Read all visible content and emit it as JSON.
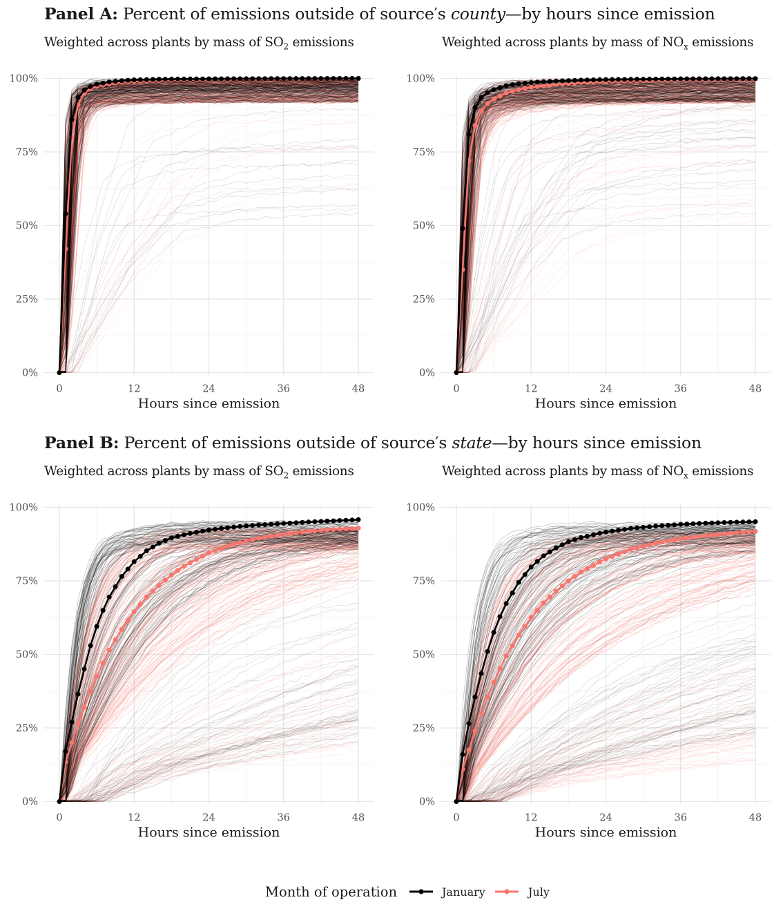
{
  "panels": {
    "a": {
      "bold": "Panel A:",
      "pre": " Percent of emissions outside of source′s ",
      "em": "county",
      "post": "—by hours since emission"
    },
    "b": {
      "bold": "Panel B:",
      "pre": " Percent of emissions outside of source′s ",
      "em": "state",
      "post": "—by hours since emission"
    }
  },
  "subtitles": {
    "so2": {
      "pre": "Weighted across plants by mass of SO",
      "sub": "2",
      "post": " emissions"
    },
    "nox": {
      "pre": "Weighted across plants by mass of NO",
      "sub": "x",
      "post": " emissions"
    }
  },
  "legend": {
    "title": "Month of operation",
    "items": [
      "January",
      "July"
    ]
  },
  "colors": {
    "january": "#000000",
    "july": "#F8766D"
  },
  "chart_data": [
    {
      "id": "a-so2",
      "type": "line",
      "panel": "Panel A",
      "pollutant": "SO2",
      "xlabel": "Hours since emission",
      "ylabel": "",
      "xlim": [
        0,
        48
      ],
      "ylim": [
        0,
        100
      ],
      "x_ticks": [
        0,
        12,
        24,
        36,
        48
      ],
      "y_ticks": [
        "0%",
        "25%",
        "50%",
        "75%",
        "100%"
      ],
      "series": [
        {
          "name": "January",
          "color": "#000000",
          "points": [
            [
              0,
              0
            ],
            [
              1,
              54
            ],
            [
              2,
              86
            ],
            [
              3,
              93.5
            ],
            [
              4,
              96
            ],
            [
              5,
              97.2
            ],
            [
              6,
              98
            ],
            [
              8,
              98.8
            ],
            [
              10,
              99.2
            ],
            [
              12,
              99.5
            ],
            [
              16,
              99.7
            ],
            [
              20,
              99.8
            ],
            [
              24,
              99.85
            ],
            [
              36,
              99.95
            ],
            [
              48,
              100
            ]
          ]
        },
        {
          "name": "July",
          "color": "#F8766D",
          "points": [
            [
              0,
              0
            ],
            [
              1,
              42
            ],
            [
              2,
              80
            ],
            [
              3,
              91
            ],
            [
              4,
              95
            ],
            [
              5,
              96.5
            ],
            [
              6,
              97.3
            ],
            [
              8,
              98.2
            ],
            [
              10,
              98.7
            ],
            [
              12,
              99
            ],
            [
              16,
              99.3
            ],
            [
              20,
              99.5
            ],
            [
              24,
              99.6
            ],
            [
              36,
              99.8
            ],
            [
              48,
              99.9
            ]
          ]
        }
      ],
      "plants": {
        "spread": 1.0,
        "tail_frac": 0.12
      }
    },
    {
      "id": "a-nox",
      "type": "line",
      "panel": "Panel A",
      "pollutant": "NOx",
      "xlabel": "Hours since emission",
      "ylabel": "",
      "xlim": [
        0,
        48
      ],
      "ylim": [
        0,
        100
      ],
      "x_ticks": [
        0,
        12,
        24,
        36,
        48
      ],
      "y_ticks": [
        "0%",
        "25%",
        "50%",
        "75%",
        "100%"
      ],
      "series": [
        {
          "name": "January",
          "color": "#000000",
          "points": [
            [
              0,
              0
            ],
            [
              1,
              49
            ],
            [
              2,
              81
            ],
            [
              3,
              90
            ],
            [
              4,
              93.5
            ],
            [
              5,
              95.2
            ],
            [
              6,
              96.2
            ],
            [
              8,
              97.5
            ],
            [
              10,
              98.2
            ],
            [
              12,
              98.6
            ],
            [
              16,
              99.1
            ],
            [
              20,
              99.4
            ],
            [
              24,
              99.6
            ],
            [
              36,
              99.85
            ],
            [
              48,
              99.95
            ]
          ]
        },
        {
          "name": "July",
          "color": "#F8766D",
          "points": [
            [
              0,
              0
            ],
            [
              1,
              35
            ],
            [
              2,
              72
            ],
            [
              3,
              84
            ],
            [
              4,
              89
            ],
            [
              5,
              91.5
            ],
            [
              6,
              93
            ],
            [
              8,
              95
            ],
            [
              10,
              96.2
            ],
            [
              12,
              97
            ],
            [
              16,
              98
            ],
            [
              20,
              98.6
            ],
            [
              24,
              99
            ],
            [
              36,
              99.5
            ],
            [
              48,
              99.7
            ]
          ]
        }
      ],
      "plants": {
        "spread": 1.4,
        "tail_frac": 0.16
      }
    },
    {
      "id": "b-so2",
      "type": "line",
      "panel": "Panel B",
      "pollutant": "SO2",
      "xlabel": "Hours since emission",
      "ylabel": "",
      "xlim": [
        0,
        48
      ],
      "ylim": [
        0,
        100
      ],
      "x_ticks": [
        0,
        12,
        24,
        36,
        48
      ],
      "y_ticks": [
        "0%",
        "25%",
        "50%",
        "75%",
        "100%"
      ],
      "series": [
        {
          "name": "January",
          "color": "#000000",
          "points": [
            [
              0,
              0
            ],
            [
              1,
              17
            ],
            [
              2,
              27
            ],
            [
              3,
              36.5
            ],
            [
              4,
              45
            ],
            [
              5,
              53
            ],
            [
              6,
              59.5
            ],
            [
              7,
              65
            ],
            [
              8,
              69.5
            ],
            [
              10,
              76.5
            ],
            [
              12,
              81.5
            ],
            [
              14,
              85.2
            ],
            [
              16,
              87.8
            ],
            [
              18,
              89.6
            ],
            [
              20,
              90.7
            ],
            [
              24,
              92.3
            ],
            [
              28,
              93.3
            ],
            [
              32,
              94
            ],
            [
              36,
              94.5
            ],
            [
              40,
              95
            ],
            [
              44,
              95.4
            ],
            [
              48,
              95.8
            ]
          ]
        },
        {
          "name": "July",
          "color": "#F8766D",
          "points": [
            [
              0,
              0
            ],
            [
              1,
              13.5
            ],
            [
              2,
              20
            ],
            [
              3,
              26.5
            ],
            [
              4,
              32
            ],
            [
              5,
              37.5
            ],
            [
              6,
              42.5
            ],
            [
              7,
              47
            ],
            [
              8,
              51.5
            ],
            [
              10,
              58.5
            ],
            [
              12,
              64.5
            ],
            [
              14,
              69.5
            ],
            [
              16,
              73.5
            ],
            [
              18,
              77
            ],
            [
              20,
              80
            ],
            [
              24,
              84.5
            ],
            [
              28,
              87.5
            ],
            [
              32,
              89.5
            ],
            [
              36,
              90.8
            ],
            [
              40,
              91.8
            ],
            [
              44,
              92.5
            ],
            [
              48,
              92.9
            ]
          ]
        }
      ],
      "plants": {
        "spread": 7,
        "tail_frac": 0.3
      }
    },
    {
      "id": "b-nox",
      "type": "line",
      "panel": "Panel B",
      "pollutant": "NOx",
      "xlabel": "Hours since emission",
      "ylabel": "",
      "xlim": [
        0,
        48
      ],
      "ylim": [
        0,
        100
      ],
      "x_ticks": [
        0,
        12,
        24,
        36,
        48
      ],
      "y_ticks": [
        "0%",
        "25%",
        "50%",
        "75%",
        "100%"
      ],
      "series": [
        {
          "name": "January",
          "color": "#000000",
          "points": [
            [
              0,
              0
            ],
            [
              1,
              16
            ],
            [
              2,
              26.5
            ],
            [
              3,
              35.5
            ],
            [
              4,
              43.5
            ],
            [
              5,
              51
            ],
            [
              6,
              57.5
            ],
            [
              7,
              62.8
            ],
            [
              8,
              67.3
            ],
            [
              10,
              74.5
            ],
            [
              12,
              79.7
            ],
            [
              14,
              83.5
            ],
            [
              16,
              86.2
            ],
            [
              18,
              88.3
            ],
            [
              20,
              89.7
            ],
            [
              24,
              91.6
            ],
            [
              28,
              92.8
            ],
            [
              32,
              93.6
            ],
            [
              36,
              94.2
            ],
            [
              40,
              94.6
            ],
            [
              44,
              94.9
            ],
            [
              48,
              95.1
            ]
          ]
        },
        {
          "name": "July",
          "color": "#F8766D",
          "points": [
            [
              0,
              0
            ],
            [
              1,
              11
            ],
            [
              2,
              17.5
            ],
            [
              3,
              24
            ],
            [
              4,
              30
            ],
            [
              5,
              35.5
            ],
            [
              6,
              40.5
            ],
            [
              7,
              45.2
            ],
            [
              8,
              49.5
            ],
            [
              10,
              56.5
            ],
            [
              12,
              62.5
            ],
            [
              14,
              67.5
            ],
            [
              16,
              71.5
            ],
            [
              18,
              75
            ],
            [
              20,
              78
            ],
            [
              24,
              82.5
            ],
            [
              28,
              85.7
            ],
            [
              32,
              87.8
            ],
            [
              36,
              89.3
            ],
            [
              40,
              90.4
            ],
            [
              44,
              91.2
            ],
            [
              48,
              91.8
            ]
          ]
        }
      ],
      "plants": {
        "spread": 7.5,
        "tail_frac": 0.34
      }
    }
  ]
}
